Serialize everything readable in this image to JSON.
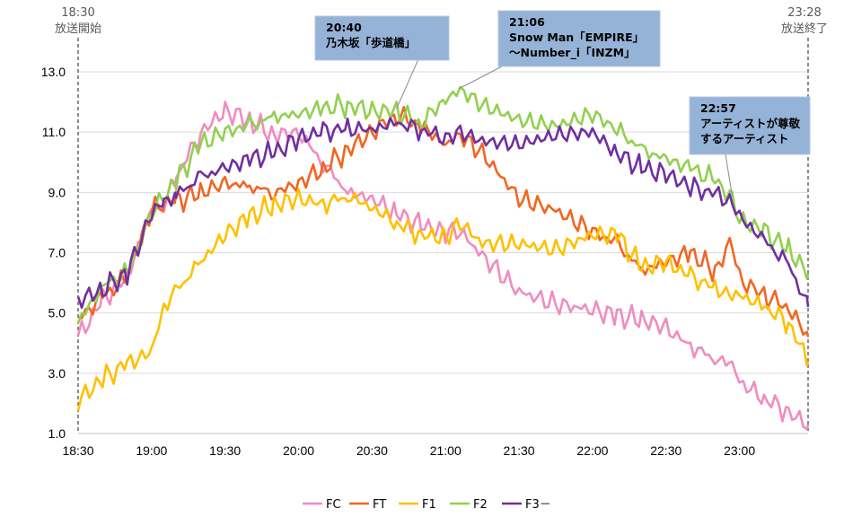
{
  "chart_data": {
    "type": "line",
    "title": "",
    "xlabel": "",
    "ylabel": "",
    "x_start_label": "18:30",
    "x_end_label": "23:28",
    "xticks": [
      "18:30",
      "19:00",
      "19:30",
      "20:00",
      "20:30",
      "21:00",
      "21:30",
      "22:00",
      "22:30",
      "23:00"
    ],
    "yticks": [
      "1.0",
      "3.0",
      "5.0",
      "7.0",
      "9.0",
      "11.0",
      "13.0"
    ],
    "ylim": [
      1,
      13
    ],
    "grid": "horizontal",
    "legend_position": "bottom",
    "start_marker": {
      "time": "18:30",
      "label": "放送開始"
    },
    "end_marker": {
      "time": "23:28",
      "label": "放送終了"
    },
    "annotations": [
      {
        "time": "20:40",
        "lines": [
          "20:40",
          "乃木坂「歩道橋」"
        ]
      },
      {
        "time": "21:06",
        "lines": [
          "21:06",
          "Snow Man「EMPIRE」",
          "～Number_i「INZM」"
        ]
      },
      {
        "time": "22:57",
        "lines": [
          "22:57",
          "アーティストが尊敬",
          "するアーティスト"
        ]
      }
    ],
    "x": [
      "18:30",
      "18:40",
      "18:50",
      "19:00",
      "19:05",
      "19:10",
      "19:20",
      "19:30",
      "19:40",
      "19:50",
      "20:00",
      "20:10",
      "20:20",
      "20:30",
      "20:40",
      "20:50",
      "21:00",
      "21:06",
      "21:15",
      "21:30",
      "21:45",
      "22:00",
      "22:10",
      "22:20",
      "22:30",
      "22:40",
      "22:50",
      "22:57",
      "23:00",
      "23:10",
      "23:20",
      "23:28"
    ],
    "series": [
      {
        "name": "FC",
        "color": "#F08CC0",
        "values": [
          4.2,
          5.4,
          6.2,
          8.4,
          8.6,
          9.5,
          11.0,
          11.7,
          11.4,
          10.9,
          11.0,
          10.0,
          9.0,
          8.8,
          8.3,
          7.9,
          7.7,
          7.7,
          6.9,
          5.7,
          5.3,
          5.1,
          4.9,
          4.8,
          4.5,
          3.9,
          3.5,
          3.3,
          2.7,
          2.2,
          1.7,
          1.3
        ]
      },
      {
        "name": "FT",
        "color": "#F26522",
        "values": [
          4.8,
          5.5,
          6.2,
          8.4,
          8.7,
          8.7,
          9.0,
          9.3,
          9.2,
          9.0,
          9.3,
          9.8,
          10.4,
          11.0,
          11.6,
          11.2,
          10.6,
          10.9,
          10.3,
          8.8,
          8.4,
          7.7,
          7.3,
          6.4,
          6.7,
          7.0,
          6.4,
          7.4,
          6.1,
          5.6,
          5.2,
          4.2
        ]
      },
      {
        "name": "F1",
        "color": "#FFC000",
        "values": [
          2.1,
          2.8,
          3.3,
          3.7,
          5.2,
          5.7,
          6.7,
          7.6,
          8.2,
          8.6,
          8.8,
          8.6,
          8.9,
          8.5,
          8.0,
          7.6,
          7.5,
          8.0,
          7.3,
          7.3,
          7.1,
          7.6,
          7.6,
          6.5,
          6.7,
          6.2,
          5.8,
          5.6,
          5.6,
          5.2,
          4.7,
          3.4
        ]
      },
      {
        "name": "F2",
        "color": "#92D050",
        "values": [
          4.7,
          5.9,
          6.3,
          8.3,
          8.9,
          9.4,
          10.6,
          11.0,
          11.2,
          11.5,
          11.6,
          11.8,
          11.9,
          11.7,
          11.7,
          11.3,
          12.1,
          12.4,
          11.9,
          11.4,
          11.2,
          11.6,
          11.1,
          10.4,
          10.1,
          9.8,
          9.4,
          8.8,
          8.1,
          7.7,
          7.1,
          6.3
        ]
      },
      {
        "name": "F3－",
        "color": "#7030A0",
        "values": [
          5.4,
          5.8,
          6.3,
          8.3,
          8.7,
          8.9,
          9.5,
          9.8,
          10.1,
          10.3,
          10.8,
          11.0,
          11.1,
          11.1,
          11.3,
          11.1,
          10.8,
          11.0,
          10.7,
          10.6,
          10.9,
          11.0,
          10.3,
          9.8,
          9.6,
          9.2,
          8.9,
          8.7,
          8.2,
          7.4,
          6.6,
          5.2
        ]
      }
    ]
  }
}
